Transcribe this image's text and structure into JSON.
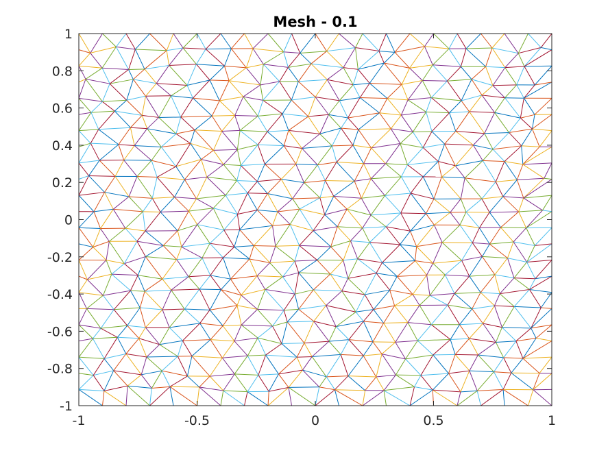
{
  "chart_data": {
    "type": "mesh",
    "title": "Mesh - 0.1",
    "xlabel": "",
    "ylabel": "",
    "xlim": [
      -1,
      1
    ],
    "ylim": [
      -1,
      1
    ],
    "xticks": [
      -1,
      -0.5,
      0,
      0.5,
      1
    ],
    "xtick_labels": [
      "-1",
      "-0.5",
      "0",
      "0.5",
      "1"
    ],
    "yticks": [
      -1,
      -0.8,
      -0.6,
      -0.4,
      -0.2,
      0,
      0.2,
      0.4,
      0.6,
      0.8,
      1
    ],
    "ytick_labels": [
      "-1",
      "-0.8",
      "-0.6",
      "-0.4",
      "-0.2",
      "0",
      "0.2",
      "0.4",
      "0.6",
      "0.8",
      "1"
    ],
    "grid": false,
    "legend": "none",
    "edge_colors": [
      "#0072BD",
      "#D95319",
      "#EDB120",
      "#7E2F8E",
      "#77AC30",
      "#4DBEEE",
      "#A2142F"
    ],
    "mesh_size": 0.1,
    "boundary_spacing": 0.1
  }
}
